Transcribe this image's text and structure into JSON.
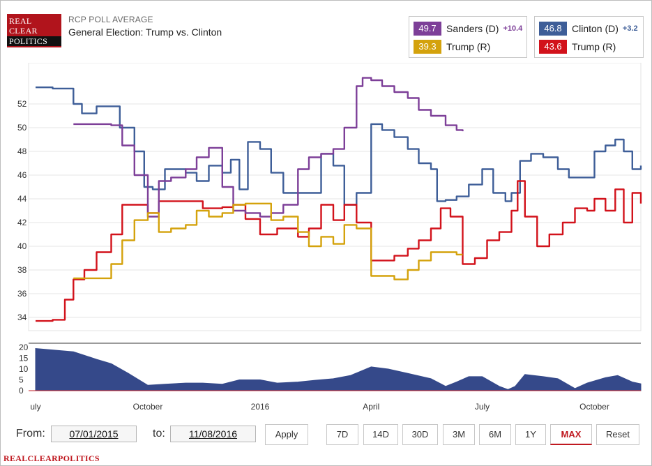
{
  "logo": {
    "line1": "REAL",
    "line2": "CLEAR",
    "line3": "POLITICS"
  },
  "header": {
    "subtitle": "RCP POLL AVERAGE",
    "title": "General Election: Trump vs. Clinton"
  },
  "legend": {
    "left": [
      {
        "value": "49.7",
        "name": "Sanders (D)",
        "spread": "+10.4",
        "color": "#7d3f98"
      },
      {
        "value": "39.3",
        "name": "Trump (R)",
        "spread": "",
        "color": "#d4a20c"
      }
    ],
    "right": [
      {
        "value": "46.8",
        "name": "Clinton (D)",
        "spread": "+3.2",
        "color": "#3e5e98"
      },
      {
        "value": "43.6",
        "name": "Trump (R)",
        "spread": "",
        "color": "#d2121b"
      }
    ]
  },
  "controls": {
    "from_label": "From:",
    "from_date": "07/01/2015",
    "to_label": "to:",
    "to_date": "11/08/2016",
    "apply": "Apply",
    "ranges": [
      "7D",
      "14D",
      "30D",
      "3M",
      "6M",
      "1Y",
      "MAX"
    ],
    "active_range": "MAX",
    "reset": "Reset"
  },
  "footer": {
    "brand": "REALCLEARPOLITICS"
  },
  "chart_data": {
    "type": "line",
    "x_label": "",
    "y_label": "",
    "ylim": [
      33,
      55
    ],
    "y_ticks": [
      34,
      36,
      38,
      40,
      42,
      44,
      46,
      48,
      50,
      52
    ],
    "x_ticks": [
      {
        "label": "uly",
        "x": "2015-07-01"
      },
      {
        "label": "October",
        "x": "2015-10-01"
      },
      {
        "label": "2016",
        "x": "2016-01-01"
      },
      {
        "label": "April",
        "x": "2016-04-01"
      },
      {
        "label": "July",
        "x": "2016-07-01"
      },
      {
        "label": "October",
        "x": "2016-10-01"
      }
    ],
    "x_range": [
      "2015-07-01",
      "2016-11-08"
    ],
    "grid": "horizontal",
    "series": [
      {
        "name": "Clinton (D)",
        "color": "#3e5e98",
        "points": [
          [
            "2015-07-01",
            53.4
          ],
          [
            "2015-07-15",
            53.3
          ],
          [
            "2015-08-01",
            52
          ],
          [
            "2015-08-08",
            51.2
          ],
          [
            "2015-08-20",
            51.8
          ],
          [
            "2015-09-01",
            51.8
          ],
          [
            "2015-09-08",
            50
          ],
          [
            "2015-09-20",
            48
          ],
          [
            "2015-09-28",
            45
          ],
          [
            "2015-10-05",
            44.8
          ],
          [
            "2015-10-15",
            46.5
          ],
          [
            "2015-11-01",
            46.2
          ],
          [
            "2015-11-10",
            45.5
          ],
          [
            "2015-11-20",
            46.8
          ],
          [
            "2015-12-01",
            46.2
          ],
          [
            "2015-12-08",
            47.3
          ],
          [
            "2015-12-15",
            44.8
          ],
          [
            "2015-12-22",
            48.8
          ],
          [
            "2016-01-01",
            48.2
          ],
          [
            "2016-01-10",
            46.2
          ],
          [
            "2016-01-20",
            44.5
          ],
          [
            "2016-02-01",
            44.5
          ],
          [
            "2016-02-10",
            44.5
          ],
          [
            "2016-02-20",
            47.8
          ],
          [
            "2016-03-01",
            46.8
          ],
          [
            "2016-03-10",
            43.5
          ],
          [
            "2016-03-20",
            44.5
          ],
          [
            "2016-04-01",
            50.3
          ],
          [
            "2016-04-10",
            49.8
          ],
          [
            "2016-04-20",
            49.2
          ],
          [
            "2016-05-01",
            48.2
          ],
          [
            "2016-05-10",
            47
          ],
          [
            "2016-05-20",
            46.5
          ],
          [
            "2016-05-25",
            43.8
          ],
          [
            "2016-06-01",
            43.9
          ],
          [
            "2016-06-10",
            44.2
          ],
          [
            "2016-06-20",
            45.2
          ],
          [
            "2016-07-01",
            46.5
          ],
          [
            "2016-07-10",
            44.5
          ],
          [
            "2016-07-20",
            43.8
          ],
          [
            "2016-07-25",
            44.5
          ],
          [
            "2016-08-01",
            47.2
          ],
          [
            "2016-08-10",
            47.8
          ],
          [
            "2016-08-20",
            47.5
          ],
          [
            "2016-09-01",
            46.5
          ],
          [
            "2016-09-10",
            45.8
          ],
          [
            "2016-09-20",
            45.8
          ],
          [
            "2016-10-01",
            48
          ],
          [
            "2016-10-10",
            48.5
          ],
          [
            "2016-10-18",
            49
          ],
          [
            "2016-10-25",
            48
          ],
          [
            "2016-11-01",
            46.5
          ],
          [
            "2016-11-08",
            46.8
          ]
        ]
      },
      {
        "name": "Trump (R)",
        "color": "#d2121b",
        "points": [
          [
            "2015-07-01",
            33.7
          ],
          [
            "2015-07-15",
            33.8
          ],
          [
            "2015-07-25",
            35.5
          ],
          [
            "2015-08-01",
            37.2
          ],
          [
            "2015-08-10",
            38
          ],
          [
            "2015-08-20",
            39.5
          ],
          [
            "2015-09-01",
            41
          ],
          [
            "2015-09-10",
            43.5
          ],
          [
            "2015-09-20",
            43.5
          ],
          [
            "2015-10-01",
            42.8
          ],
          [
            "2015-10-10",
            43.8
          ],
          [
            "2015-11-01",
            43.8
          ],
          [
            "2015-11-15",
            43.2
          ],
          [
            "2015-12-01",
            43.3
          ],
          [
            "2015-12-10",
            43.5
          ],
          [
            "2015-12-20",
            42.3
          ],
          [
            "2016-01-01",
            41
          ],
          [
            "2016-01-15",
            41.5
          ],
          [
            "2016-02-01",
            40.8
          ],
          [
            "2016-02-10",
            41.5
          ],
          [
            "2016-02-20",
            43.5
          ],
          [
            "2016-03-01",
            42.2
          ],
          [
            "2016-03-10",
            43.5
          ],
          [
            "2016-03-20",
            42
          ],
          [
            "2016-04-01",
            38.8
          ],
          [
            "2016-04-10",
            38.8
          ],
          [
            "2016-04-20",
            39.2
          ],
          [
            "2016-05-01",
            39.8
          ],
          [
            "2016-05-10",
            40.5
          ],
          [
            "2016-05-20",
            41.5
          ],
          [
            "2016-05-28",
            43.2
          ],
          [
            "2016-06-05",
            42.5
          ],
          [
            "2016-06-15",
            38.5
          ],
          [
            "2016-06-25",
            39
          ],
          [
            "2016-07-05",
            40.5
          ],
          [
            "2016-07-15",
            41.2
          ],
          [
            "2016-07-25",
            43
          ],
          [
            "2016-07-30",
            45.5
          ],
          [
            "2016-08-05",
            42.5
          ],
          [
            "2016-08-15",
            40
          ],
          [
            "2016-08-25",
            41
          ],
          [
            "2016-09-05",
            42
          ],
          [
            "2016-09-15",
            43.2
          ],
          [
            "2016-09-25",
            43
          ],
          [
            "2016-10-01",
            44
          ],
          [
            "2016-10-10",
            43
          ],
          [
            "2016-10-18",
            44.8
          ],
          [
            "2016-10-25",
            42
          ],
          [
            "2016-11-01",
            44.5
          ],
          [
            "2016-11-08",
            43.6
          ]
        ]
      },
      {
        "name": "Sanders (D)",
        "color": "#7d3f98",
        "points": [
          [
            "2015-08-01",
            50.3
          ],
          [
            "2015-08-20",
            50.3
          ],
          [
            "2015-09-01",
            50.2
          ],
          [
            "2015-09-10",
            48.5
          ],
          [
            "2015-09-20",
            46
          ],
          [
            "2015-10-01",
            42.5
          ],
          [
            "2015-10-10",
            45.5
          ],
          [
            "2015-10-20",
            45.8
          ],
          [
            "2015-11-01",
            46.5
          ],
          [
            "2015-11-10",
            47.5
          ],
          [
            "2015-11-20",
            48.3
          ],
          [
            "2015-12-01",
            45
          ],
          [
            "2015-12-10",
            43
          ],
          [
            "2015-12-20",
            42.8
          ],
          [
            "2016-01-01",
            42.5
          ],
          [
            "2016-01-10",
            42.8
          ],
          [
            "2016-01-20",
            43.5
          ],
          [
            "2016-02-01",
            46.5
          ],
          [
            "2016-02-10",
            47.5
          ],
          [
            "2016-02-20",
            47.8
          ],
          [
            "2016-03-01",
            48.2
          ],
          [
            "2016-03-10",
            50
          ],
          [
            "2016-03-20",
            53.5
          ],
          [
            "2016-03-25",
            54.2
          ],
          [
            "2016-04-01",
            54
          ],
          [
            "2016-04-10",
            53.5
          ],
          [
            "2016-04-20",
            53
          ],
          [
            "2016-05-01",
            52.5
          ],
          [
            "2016-05-10",
            51.5
          ],
          [
            "2016-05-20",
            51
          ],
          [
            "2016-06-01",
            50.2
          ],
          [
            "2016-06-10",
            49.8
          ],
          [
            "2016-06-15",
            49.7
          ]
        ]
      },
      {
        "name": "Trump (R)",
        "color": "#d4a20c",
        "points": [
          [
            "2015-08-01",
            37.3
          ],
          [
            "2015-08-20",
            37.3
          ],
          [
            "2015-09-01",
            38.5
          ],
          [
            "2015-09-10",
            40.5
          ],
          [
            "2015-09-20",
            42.2
          ],
          [
            "2015-10-01",
            42.8
          ],
          [
            "2015-10-10",
            41.2
          ],
          [
            "2015-10-20",
            41.5
          ],
          [
            "2015-11-01",
            41.8
          ],
          [
            "2015-11-10",
            43
          ],
          [
            "2015-11-20",
            42.5
          ],
          [
            "2015-12-01",
            42.8
          ],
          [
            "2015-12-10",
            43.5
          ],
          [
            "2015-12-20",
            43.6
          ],
          [
            "2016-01-01",
            43.6
          ],
          [
            "2016-01-10",
            42.2
          ],
          [
            "2016-01-20",
            42.5
          ],
          [
            "2016-02-01",
            41.2
          ],
          [
            "2016-02-10",
            40
          ],
          [
            "2016-02-20",
            40.8
          ],
          [
            "2016-03-01",
            40.2
          ],
          [
            "2016-03-10",
            41.8
          ],
          [
            "2016-03-20",
            41.5
          ],
          [
            "2016-04-01",
            37.5
          ],
          [
            "2016-04-10",
            37.5
          ],
          [
            "2016-04-20",
            37.2
          ],
          [
            "2016-05-01",
            38
          ],
          [
            "2016-05-10",
            38.8
          ],
          [
            "2016-05-20",
            39.5
          ],
          [
            "2016-06-01",
            39.5
          ],
          [
            "2016-06-10",
            39.3
          ],
          [
            "2016-06-15",
            39.3
          ]
        ]
      }
    ],
    "navigator": {
      "type": "area",
      "ylim": [
        0,
        20
      ],
      "y_ticks": [
        0,
        5,
        10,
        15,
        20
      ],
      "color": "#35498a",
      "points": [
        [
          "2015-07-01",
          19.5
        ],
        [
          "2015-08-01",
          18
        ],
        [
          "2015-08-20",
          14.5
        ],
        [
          "2015-09-01",
          12.5
        ],
        [
          "2015-09-15",
          8
        ],
        [
          "2015-10-01",
          2.5
        ],
        [
          "2015-10-15",
          3
        ],
        [
          "2015-11-01",
          3.5
        ],
        [
          "2015-11-15",
          3.5
        ],
        [
          "2015-12-01",
          3
        ],
        [
          "2015-12-15",
          5
        ],
        [
          "2016-01-01",
          5
        ],
        [
          "2016-01-15",
          3.5
        ],
        [
          "2016-02-01",
          4
        ],
        [
          "2016-02-15",
          4.8
        ],
        [
          "2016-03-01",
          5.5
        ],
        [
          "2016-03-15",
          7
        ],
        [
          "2016-04-01",
          11
        ],
        [
          "2016-04-15",
          10
        ],
        [
          "2016-05-01",
          8
        ],
        [
          "2016-05-20",
          5.5
        ],
        [
          "2016-06-01",
          2
        ],
        [
          "2016-06-10",
          4
        ],
        [
          "2016-06-20",
          6.5
        ],
        [
          "2016-07-01",
          6.5
        ],
        [
          "2016-07-15",
          2
        ],
        [
          "2016-07-22",
          0.5
        ],
        [
          "2016-07-28",
          2
        ],
        [
          "2016-08-05",
          7.5
        ],
        [
          "2016-08-20",
          6.5
        ],
        [
          "2016-09-01",
          5.5
        ],
        [
          "2016-09-15",
          1
        ],
        [
          "2016-09-25",
          3.5
        ],
        [
          "2016-10-10",
          6
        ],
        [
          "2016-10-20",
          7
        ],
        [
          "2016-11-01",
          4
        ],
        [
          "2016-11-08",
          3.2
        ]
      ]
    }
  }
}
